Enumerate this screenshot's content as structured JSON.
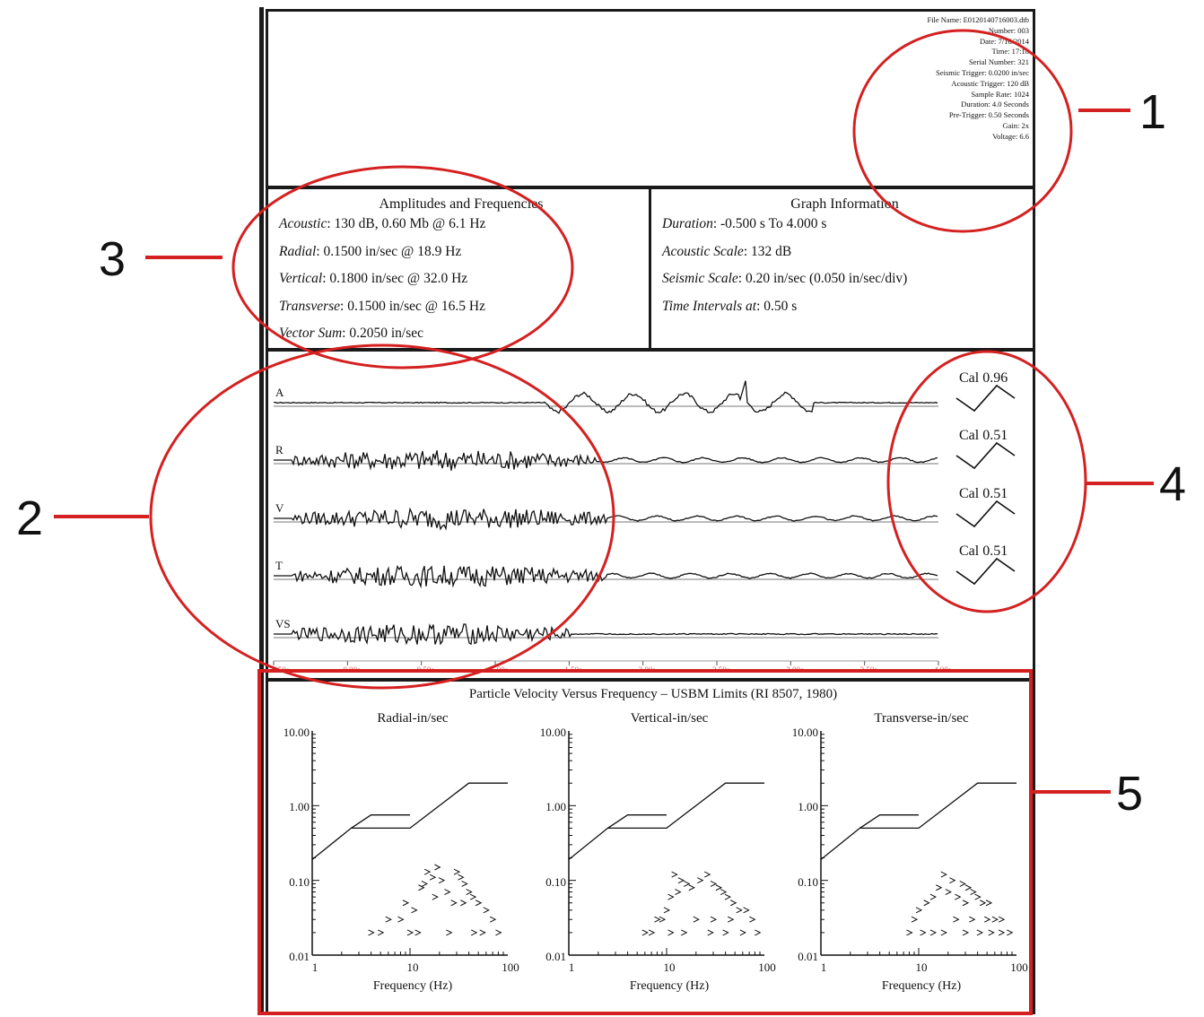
{
  "colors": {
    "annotation": "#d42020",
    "ink": "#1a1a1a",
    "time_tick": "#e05050"
  },
  "header_info": {
    "lines": [
      "File Name: E0120140716003.dtb",
      "Number: 003",
      "Date: 7/16/2014",
      "Time: 17:18",
      "Serial Number: 321",
      "Seismic Trigger: 0.0200 in/sec",
      "Acoustic Trigger: 120 dB",
      "Sample Rate: 1024",
      "Duration: 4.0 Seconds",
      "Pre-Trigger: 0.50 Seconds",
      "Gain: 2x",
      "Voltage: 6.6"
    ]
  },
  "amplitudes": {
    "title": "Amplitudes and Frequencies",
    "lines": [
      {
        "label": "Acoustic",
        "value": ": 130 dB, 0.60 Mb @ 6.1 Hz"
      },
      {
        "label": "Radial",
        "value": ": 0.1500 in/sec @ 18.9 Hz"
      },
      {
        "label": "Vertical",
        "value": ": 0.1800 in/sec @ 32.0 Hz"
      },
      {
        "label": "Transverse",
        "value": ": 0.1500 in/sec @ 16.5 Hz"
      },
      {
        "label": "Vector Sum",
        "value": ": 0.2050 in/sec"
      }
    ]
  },
  "graph_info": {
    "title": "Graph Information",
    "lines": [
      {
        "label": "Duration",
        "value": ": -0.500 s To 4.000 s"
      },
      {
        "label": "Acoustic Scale",
        "value": ": 132 dB"
      },
      {
        "label": "Seismic Scale",
        "value": ": 0.20 in/sec (0.050 in/sec/div)"
      },
      {
        "label": "Time Intervals at",
        "value": ": 0.50 s"
      }
    ]
  },
  "waveforms": {
    "traces": [
      {
        "label": "A",
        "cal": "Cal 0.96"
      },
      {
        "label": "R",
        "cal": "Cal 0.51"
      },
      {
        "label": "V",
        "cal": "Cal 0.51"
      },
      {
        "label": "T",
        "cal": "Cal 0.51"
      },
      {
        "label": "VS",
        "cal": ""
      }
    ],
    "time_ticks": [
      "-0.50s",
      "0.00s",
      "0.50s",
      "1.00s",
      "1.50s",
      "2.00s",
      "2.50s",
      "3.00s",
      "3.50s",
      "4.00s"
    ]
  },
  "callouts": [
    "1",
    "2",
    "3",
    "4",
    "5"
  ],
  "chart_data": [
    {
      "type": "scatter",
      "title": "Radial-in/sec",
      "xlabel": "Frequency (Hz)",
      "ylabel": "",
      "xscale": "log",
      "yscale": "log",
      "xlim": [
        1,
        100
      ],
      "ylim": [
        0.01,
        10.0
      ],
      "xticks": [
        "1",
        "10",
        "100"
      ],
      "yticks": [
        "10.00",
        "1.00",
        "0.10",
        "0.01"
      ],
      "limit_lines": [
        {
          "x": [
            1,
            2.5,
            4,
            10,
            40,
            100
          ],
          "y": [
            0.19,
            0.5,
            0.5,
            0.5,
            2.0,
            2.0
          ]
        },
        {
          "x": [
            2.5,
            4,
            10
          ],
          "y": [
            0.5,
            0.75,
            0.75
          ]
        }
      ],
      "points": [
        [
          15,
          0.13
        ],
        [
          17,
          0.11
        ],
        [
          19,
          0.15
        ],
        [
          21,
          0.1
        ],
        [
          14,
          0.09
        ],
        [
          13,
          0.08
        ],
        [
          24,
          0.07
        ],
        [
          18,
          0.06
        ],
        [
          30,
          0.13
        ],
        [
          33,
          0.11
        ],
        [
          36,
          0.09
        ],
        [
          40,
          0.07
        ],
        [
          44,
          0.06
        ],
        [
          50,
          0.05
        ],
        [
          28,
          0.05
        ],
        [
          35,
          0.05
        ],
        [
          60,
          0.04
        ],
        [
          70,
          0.03
        ],
        [
          9,
          0.05
        ],
        [
          11,
          0.04
        ],
        [
          8,
          0.03
        ],
        [
          6,
          0.03
        ],
        [
          5,
          0.02
        ],
        [
          4,
          0.02
        ],
        [
          10,
          0.02
        ],
        [
          12,
          0.02
        ],
        [
          25,
          0.02
        ],
        [
          45,
          0.02
        ],
        [
          55,
          0.02
        ],
        [
          80,
          0.02
        ]
      ]
    },
    {
      "type": "scatter",
      "title": "Vertical-in/sec",
      "xlabel": "Frequency (Hz)",
      "ylabel": "",
      "xscale": "log",
      "yscale": "log",
      "xlim": [
        1,
        100
      ],
      "ylim": [
        0.01,
        10.0
      ],
      "xticks": [
        "1",
        "10",
        "100"
      ],
      "yticks": [
        "10.00",
        "1.00",
        "0.10",
        "0.01"
      ],
      "limit_lines": [
        {
          "x": [
            1,
            2.5,
            4,
            10,
            40,
            100
          ],
          "y": [
            0.19,
            0.5,
            0.5,
            0.5,
            2.0,
            2.0
          ]
        },
        {
          "x": [
            2.5,
            4,
            10
          ],
          "y": [
            0.5,
            0.75,
            0.75
          ]
        }
      ],
      "points": [
        [
          12,
          0.12
        ],
        [
          14,
          0.1
        ],
        [
          16,
          0.09
        ],
        [
          18,
          0.08
        ],
        [
          13,
          0.07
        ],
        [
          11,
          0.06
        ],
        [
          22,
          0.1
        ],
        [
          26,
          0.12
        ],
        [
          30,
          0.09
        ],
        [
          34,
          0.08
        ],
        [
          38,
          0.07
        ],
        [
          42,
          0.06
        ],
        [
          48,
          0.05
        ],
        [
          55,
          0.04
        ],
        [
          65,
          0.04
        ],
        [
          10,
          0.04
        ],
        [
          9,
          0.03
        ],
        [
          8,
          0.03
        ],
        [
          20,
          0.03
        ],
        [
          30,
          0.03
        ],
        [
          45,
          0.03
        ],
        [
          75,
          0.03
        ],
        [
          6,
          0.02
        ],
        [
          7,
          0.02
        ],
        [
          11,
          0.02
        ],
        [
          15,
          0.02
        ],
        [
          28,
          0.02
        ],
        [
          40,
          0.02
        ],
        [
          60,
          0.02
        ],
        [
          85,
          0.02
        ]
      ]
    },
    {
      "type": "scatter",
      "title": "Transverse-in/sec",
      "xlabel": "Frequency (Hz)",
      "ylabel": "",
      "xscale": "log",
      "yscale": "log",
      "xlim": [
        1,
        100
      ],
      "ylim": [
        0.01,
        10.0
      ],
      "xticks": [
        "1",
        "10",
        "100"
      ],
      "yticks": [
        "10.00",
        "1.00",
        "0.10",
        "0.01"
      ],
      "limit_lines": [
        {
          "x": [
            1,
            2.5,
            4,
            10,
            40,
            100
          ],
          "y": [
            0.19,
            0.5,
            0.5,
            0.5,
            2.0,
            2.0
          ]
        },
        {
          "x": [
            2.5,
            4,
            10
          ],
          "y": [
            0.5,
            0.75,
            0.75
          ]
        }
      ],
      "points": [
        [
          18,
          0.12
        ],
        [
          22,
          0.1
        ],
        [
          16,
          0.08
        ],
        [
          20,
          0.07
        ],
        [
          25,
          0.06
        ],
        [
          14,
          0.06
        ],
        [
          28,
          0.09
        ],
        [
          32,
          0.08
        ],
        [
          36,
          0.07
        ],
        [
          40,
          0.06
        ],
        [
          45,
          0.05
        ],
        [
          52,
          0.05
        ],
        [
          30,
          0.05
        ],
        [
          12,
          0.05
        ],
        [
          10,
          0.04
        ],
        [
          9,
          0.03
        ],
        [
          60,
          0.03
        ],
        [
          70,
          0.03
        ],
        [
          24,
          0.03
        ],
        [
          35,
          0.03
        ],
        [
          8,
          0.02
        ],
        [
          11,
          0.02
        ],
        [
          14,
          0.02
        ],
        [
          18,
          0.02
        ],
        [
          30,
          0.02
        ],
        [
          42,
          0.02
        ],
        [
          55,
          0.02
        ],
        [
          70,
          0.02
        ],
        [
          85,
          0.02
        ],
        [
          50,
          0.03
        ]
      ]
    }
  ],
  "velocity_plots": {
    "title": "Particle Velocity Versus Frequency – USBM Limits (RI 8507, 1980)"
  }
}
